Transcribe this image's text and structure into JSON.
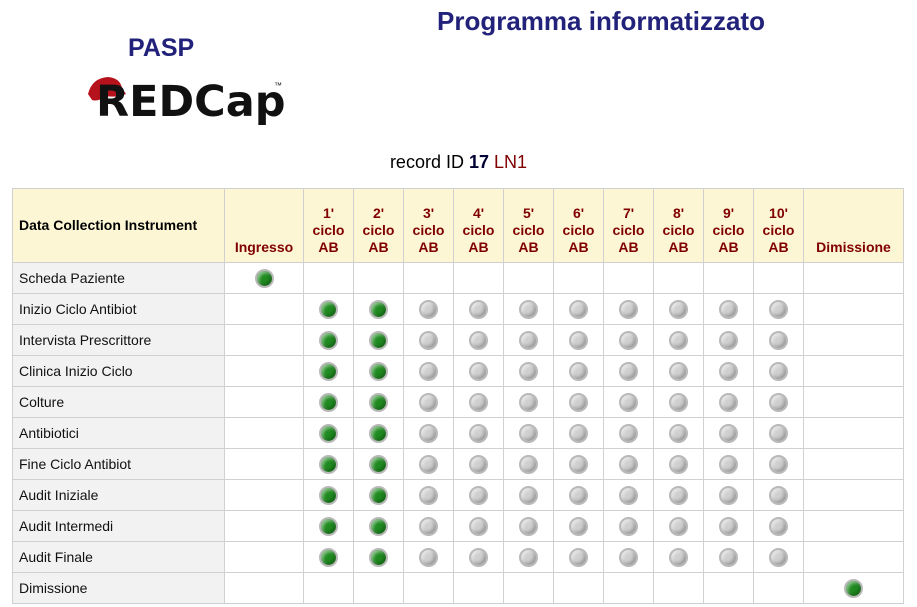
{
  "header": {
    "title": "Programma informatizzato",
    "project": "PASP",
    "logo": "REDCap",
    "logo_mark": "™"
  },
  "record": {
    "prefix": "record ID",
    "id": "17",
    "code": "LN1"
  },
  "table": {
    "corner": "Data Collection Instrument",
    "columns": [
      [
        "Ingresso"
      ],
      [
        "1'",
        "ciclo",
        "AB"
      ],
      [
        "2'",
        "ciclo",
        "AB"
      ],
      [
        "3'",
        "ciclo",
        "AB"
      ],
      [
        "4'",
        "ciclo",
        "AB"
      ],
      [
        "5'",
        "ciclo",
        "AB"
      ],
      [
        "6'",
        "ciclo",
        "AB"
      ],
      [
        "7'",
        "ciclo",
        "AB"
      ],
      [
        "8'",
        "ciclo",
        "AB"
      ],
      [
        "9'",
        "ciclo",
        "AB"
      ],
      [
        "10'",
        "ciclo",
        "AB"
      ],
      [
        "Dimissione"
      ]
    ],
    "rows": [
      {
        "label": "Scheda Paziente",
        "cells": [
          "#1f8a1f",
          null,
          null,
          null,
          null,
          null,
          null,
          null,
          null,
          null,
          null,
          null
        ]
      },
      {
        "label": "Inizio Ciclo Antibiot",
        "cells": [
          null,
          "#1f8a1f",
          "#1f8a1f",
          "#cfcfcf",
          "#cfcfcf",
          "#cfcfcf",
          "#cfcfcf",
          "#cfcfcf",
          "#cfcfcf",
          "#cfcfcf",
          "#cfcfcf",
          null
        ]
      },
      {
        "label": "Intervista Prescrittore",
        "cells": [
          null,
          "#1f8a1f",
          "#1f8a1f",
          "#cfcfcf",
          "#cfcfcf",
          "#cfcfcf",
          "#cfcfcf",
          "#cfcfcf",
          "#cfcfcf",
          "#cfcfcf",
          "#cfcfcf",
          null
        ]
      },
      {
        "label": "Clinica Inizio Ciclo",
        "cells": [
          null,
          "#1f8a1f",
          "#1f8a1f",
          "#cfcfcf",
          "#cfcfcf",
          "#cfcfcf",
          "#cfcfcf",
          "#cfcfcf",
          "#cfcfcf",
          "#cfcfcf",
          "#cfcfcf",
          null
        ]
      },
      {
        "label": "Colture",
        "cells": [
          null,
          "#1f8a1f",
          "#1f8a1f",
          "#cfcfcf",
          "#cfcfcf",
          "#cfcfcf",
          "#cfcfcf",
          "#cfcfcf",
          "#cfcfcf",
          "#cfcfcf",
          "#cfcfcf",
          null
        ]
      },
      {
        "label": "Antibiotici",
        "cells": [
          null,
          "#1f8a1f",
          "#1f8a1f",
          "#cfcfcf",
          "#cfcfcf",
          "#cfcfcf",
          "#cfcfcf",
          "#cfcfcf",
          "#cfcfcf",
          "#cfcfcf",
          "#cfcfcf",
          null
        ]
      },
      {
        "label": "Fine Ciclo Antibiot",
        "cells": [
          null,
          "#1f8a1f",
          "#1f8a1f",
          "#cfcfcf",
          "#cfcfcf",
          "#cfcfcf",
          "#cfcfcf",
          "#cfcfcf",
          "#cfcfcf",
          "#cfcfcf",
          "#cfcfcf",
          null
        ]
      },
      {
        "label": "Audit Iniziale",
        "cells": [
          null,
          "#1f8a1f",
          "#1f8a1f",
          "#cfcfcf",
          "#cfcfcf",
          "#cfcfcf",
          "#cfcfcf",
          "#cfcfcf",
          "#cfcfcf",
          "#cfcfcf",
          "#cfcfcf",
          null
        ]
      },
      {
        "label": "Audit Intermedi",
        "cells": [
          null,
          "#1f8a1f",
          "#1f8a1f",
          "#cfcfcf",
          "#cfcfcf",
          "#cfcfcf",
          "#cfcfcf",
          "#cfcfcf",
          "#cfcfcf",
          "#cfcfcf",
          "#cfcfcf",
          null
        ]
      },
      {
        "label": "Audit Finale",
        "cells": [
          null,
          "#1f8a1f",
          "#1f8a1f",
          "#cfcfcf",
          "#cfcfcf",
          "#cfcfcf",
          "#cfcfcf",
          "#cfcfcf",
          "#cfcfcf",
          "#cfcfcf",
          "#cfcfcf",
          null
        ]
      },
      {
        "label": "Dimissione",
        "cells": [
          null,
          null,
          null,
          null,
          null,
          null,
          null,
          null,
          null,
          null,
          null,
          "#1f8a1f"
        ]
      }
    ]
  }
}
